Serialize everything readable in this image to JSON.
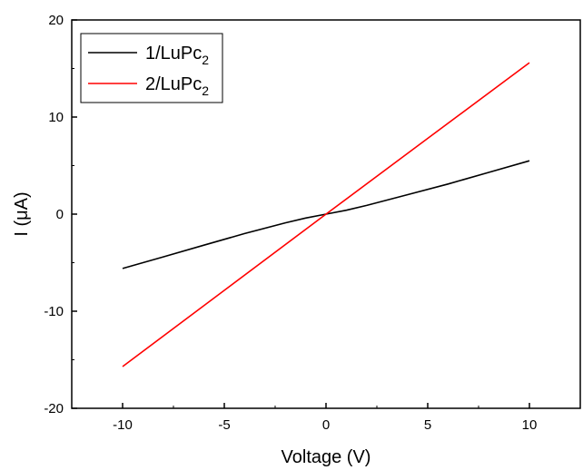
{
  "chart_data": {
    "type": "line",
    "xlabel": "Voltage (V)",
    "ylabel": "I (μA)",
    "xlim": [
      -12.5,
      12.5
    ],
    "ylim": [
      -20,
      20
    ],
    "xticks": [
      -10,
      -5,
      0,
      5,
      10
    ],
    "yticks": [
      -20,
      -10,
      0,
      10,
      20
    ],
    "xtick_labels": [
      "-10",
      "-5",
      "0",
      "5",
      "10"
    ],
    "ytick_labels": [
      "-20",
      "-10",
      "0",
      "10",
      "20"
    ],
    "grid": false,
    "legend_position": "top-left",
    "series": [
      {
        "name": "1/LuPc2",
        "legend_main": "1/LuPc",
        "legend_sub": "2",
        "color": "#000000",
        "x": [
          -10,
          -8,
          -6,
          -4,
          -2,
          -1,
          0,
          1,
          2,
          4,
          6,
          8,
          10
        ],
        "y": [
          -5.6,
          -4.4,
          -3.2,
          -2.0,
          -0.9,
          -0.4,
          0,
          0.4,
          0.9,
          2.0,
          3.1,
          4.3,
          5.5
        ]
      },
      {
        "name": "2/LuPc2",
        "legend_main": "2/LuPc",
        "legend_sub": "2",
        "color": "#ff0000",
        "x": [
          -10,
          -5,
          0,
          5,
          10
        ],
        "y": [
          -15.7,
          -7.85,
          0,
          7.8,
          15.6
        ]
      }
    ]
  }
}
